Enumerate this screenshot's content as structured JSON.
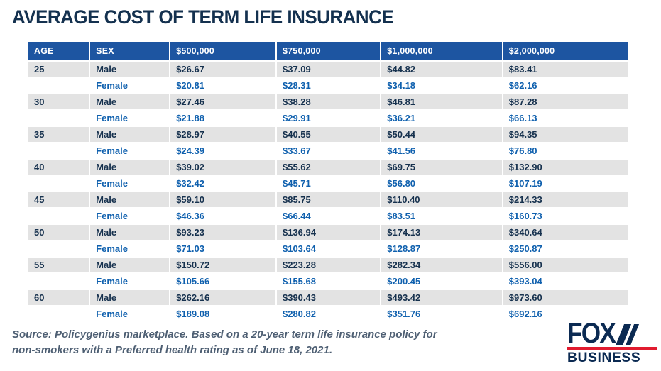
{
  "title": "AVERAGE COST OF TERM LIFE INSURANCE",
  "chart_data": {
    "type": "table",
    "title": "AVERAGE COST OF TERM LIFE INSURANCE",
    "columns": [
      "AGE",
      "SEX",
      "$500,000",
      "$750,000",
      "$1,000,000",
      "$2,000,000"
    ],
    "rows": [
      {
        "age": "25",
        "sex": "Male",
        "values": [
          "$26.67",
          "$37.09",
          "$44.82",
          "$83.41"
        ]
      },
      {
        "age": "",
        "sex": "Female",
        "values": [
          "$20.81",
          "$28.31",
          "$34.18",
          "$62.16"
        ]
      },
      {
        "age": "30",
        "sex": "Male",
        "values": [
          "$27.46",
          "$38.28",
          "$46.81",
          "$87.28"
        ]
      },
      {
        "age": "",
        "sex": "Female",
        "values": [
          "$21.88",
          "$29.91",
          "$36.21",
          "$66.13"
        ]
      },
      {
        "age": "35",
        "sex": "Male",
        "values": [
          "$28.97",
          "$40.55",
          "$50.44",
          "$94.35"
        ]
      },
      {
        "age": "",
        "sex": "Female",
        "values": [
          "$24.39",
          "$33.67",
          "$41.56",
          "$76.80"
        ]
      },
      {
        "age": "40",
        "sex": "Male",
        "values": [
          "$39.02",
          "$55.62",
          "$69.75",
          "$132.90"
        ]
      },
      {
        "age": "",
        "sex": "Female",
        "values": [
          "$32.42",
          "$45.71",
          "$56.80",
          "$107.19"
        ]
      },
      {
        "age": "45",
        "sex": "Male",
        "values": [
          "$59.10",
          "$85.75",
          "$110.40",
          "$214.33"
        ]
      },
      {
        "age": "",
        "sex": "Female",
        "values": [
          "$46.36",
          "$66.44",
          "$83.51",
          "$160.73"
        ]
      },
      {
        "age": "50",
        "sex": "Male",
        "values": [
          "$93.23",
          "$136.94",
          "$174.13",
          "$340.64"
        ]
      },
      {
        "age": "",
        "sex": "Female",
        "values": [
          "$71.03",
          "$103.64",
          "$128.87",
          "$250.87"
        ]
      },
      {
        "age": "55",
        "sex": "Male",
        "values": [
          "$150.72",
          "$223.28",
          "$282.34",
          "$556.00"
        ]
      },
      {
        "age": "",
        "sex": "Female",
        "values": [
          "$105.66",
          "$155.68",
          "$200.45",
          "$393.04"
        ]
      },
      {
        "age": "60",
        "sex": "Male",
        "values": [
          "$262.16",
          "$390.43",
          "$493.42",
          "$973.60"
        ]
      },
      {
        "age": "",
        "sex": "Female",
        "values": [
          "$189.08",
          "$280.82",
          "$351.76",
          "$692.16"
        ]
      }
    ]
  },
  "source_note": "Source: Policygenius marketplace. Based on a 20-year term life insurance policy for non-smokers with a Preferred health rating as of June 18, 2021.",
  "logo": {
    "line1": "FOX",
    "line2": "BUSINESS"
  },
  "colors": {
    "header_blue": "#1d55a1",
    "male_row_bg": "#e3e3e3",
    "male_text_navy": "#16314e",
    "female_text_blue": "#0f60ae",
    "title_navy": "#14314f",
    "source_gray_blue": "#4e5f73",
    "logo_navy": "#0b2a52",
    "logo_red": "#e11b2f"
  }
}
